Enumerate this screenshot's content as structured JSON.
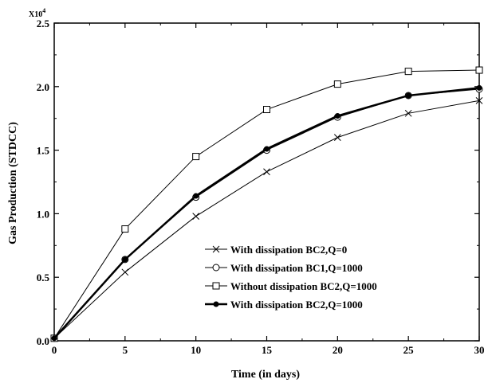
{
  "chart_data": {
    "type": "line",
    "title": "",
    "xlabel": "Time (in days)",
    "ylabel": "Gas Production (STDCC)",
    "y_multiplier_label": "X10",
    "y_multiplier_exp": "4",
    "xlim": [
      0,
      30
    ],
    "ylim": [
      0,
      2.5
    ],
    "x_ticks": [
      0,
      5,
      10,
      15,
      20,
      25,
      30
    ],
    "x_tick_labels": [
      "0",
      "5",
      "10",
      "15",
      "20",
      "25",
      "30"
    ],
    "y_ticks": [
      0,
      0.5,
      1.0,
      1.5,
      2.0,
      2.5
    ],
    "y_tick_labels": [
      "0.0",
      "0.5",
      "1.0",
      "1.5",
      "2.0",
      "2.5"
    ],
    "grid": false,
    "legend_position": "bottom-right",
    "x": [
      0,
      5,
      10,
      15,
      20,
      25,
      30
    ],
    "series": [
      {
        "name": "With dissipation BC2,Q=0",
        "marker": "x",
        "line_width": 1,
        "values": [
          0.02,
          0.54,
          0.98,
          1.33,
          1.6,
          1.79,
          1.89
        ]
      },
      {
        "name": "With dissipation BC1,Q=1000",
        "marker": "circle-open",
        "line_width": 1,
        "values": [
          0.02,
          0.64,
          1.13,
          1.5,
          1.76,
          1.93,
          1.98
        ]
      },
      {
        "name": "Without dissipation BC2,Q=1000",
        "marker": "square-open",
        "line_width": 1,
        "values": [
          0.02,
          0.88,
          1.45,
          1.82,
          2.02,
          2.12,
          2.13
        ]
      },
      {
        "name": "With dissipation BC2,Q=1000",
        "marker": "circle-filled",
        "line_width": 2.5,
        "values": [
          0.02,
          0.64,
          1.14,
          1.51,
          1.77,
          1.93,
          1.99
        ]
      }
    ]
  }
}
